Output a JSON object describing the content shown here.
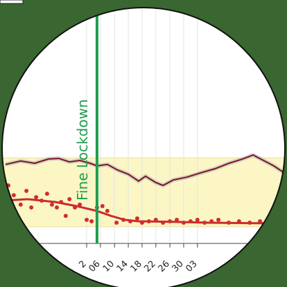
{
  "chart_data": {
    "type": "line",
    "xlim": [
      0,
      100
    ],
    "ylim": [
      0,
      100
    ],
    "xticks": [
      {
        "value": 30.2,
        "label": "2"
      },
      {
        "value": 35,
        "label": "06"
      },
      {
        "value": 39.9,
        "label": "10"
      },
      {
        "value": 44.7,
        "label": "14"
      },
      {
        "value": 49.5,
        "label": "18"
      },
      {
        "value": 54.3,
        "label": "22"
      },
      {
        "value": 59.2,
        "label": "26"
      },
      {
        "value": 64,
        "label": "30"
      },
      {
        "value": 68.8,
        "label": "03"
      }
    ],
    "grid": true,
    "band": {
      "range": [
        21,
        45
      ],
      "color": "#fbf6c4"
    },
    "annotation": {
      "x": 33.8,
      "label": "Fine Lockdown",
      "color": "#1e9e50"
    },
    "series": [
      {
        "color": "#7a1424",
        "x": [
          1.9,
          7.2,
          12.1,
          16.9,
          20.5,
          24.2,
          27.8,
          31.4,
          33.8,
          37.4,
          41.1,
          44.7,
          48.3,
          50.7,
          54.3,
          56.8,
          60.4,
          65.2,
          70,
          74.9,
          79.7,
          84.5,
          88.2,
          91.8,
          95.4,
          99
        ],
        "values": [
          42.7,
          43.9,
          43.1,
          44.6,
          44.8,
          43.6,
          44.1,
          43.1,
          42.2,
          42.7,
          40.7,
          39.3,
          36.9,
          38.6,
          36.4,
          35.4,
          37.3,
          38.3,
          39.8,
          41.2,
          43.1,
          44.6,
          46.0,
          44.1,
          42.2,
          39.8
        ]
      },
      {
        "color": "#cc2a2a",
        "x": [
          1.2,
          9.7,
          19.3,
          26.6,
          33.8,
          38.6,
          43.5,
          48.3,
          60.4,
          72.5,
          91.8
        ],
        "values": [
          30.1,
          30.6,
          29.6,
          28.2,
          26.5,
          24.8,
          23.4,
          22.9,
          22.7,
          22.4,
          22.2
        ]
      },
      {
        "color": "#d12e2e",
        "scatter": true,
        "x": [
          2.9,
          4.8,
          7.2,
          9.2,
          10.9,
          12.6,
          14.5,
          16.4,
          18.1,
          19.8,
          21.3,
          22.9,
          24.2,
          26.1,
          27.8,
          30.2,
          31.9,
          33.8,
          35.7,
          37.4,
          40.6,
          43,
          45.4,
          47.8,
          49.5,
          51.9,
          54.3,
          56.8,
          59.2,
          61.6,
          64,
          66.4,
          68.8,
          71.3,
          73.7,
          76.1,
          79.7,
          83.3,
          87,
          90.6
        ],
        "values": [
          35.4,
          32,
          28.7,
          33.5,
          27.7,
          31.3,
          30.1,
          32.5,
          28.7,
          27.7,
          29.6,
          24.8,
          30.6,
          27.7,
          28.7,
          23.4,
          22.9,
          27.7,
          28.2,
          26.5,
          22.4,
          23.4,
          22.9,
          23.9,
          22.4,
          22.9,
          23.4,
          22.4,
          22.9,
          23.4,
          22.4,
          22.9,
          23.4,
          22.4,
          22.9,
          23.4,
          22.4,
          22.9,
          22.4,
          22.9
        ]
      }
    ]
  }
}
